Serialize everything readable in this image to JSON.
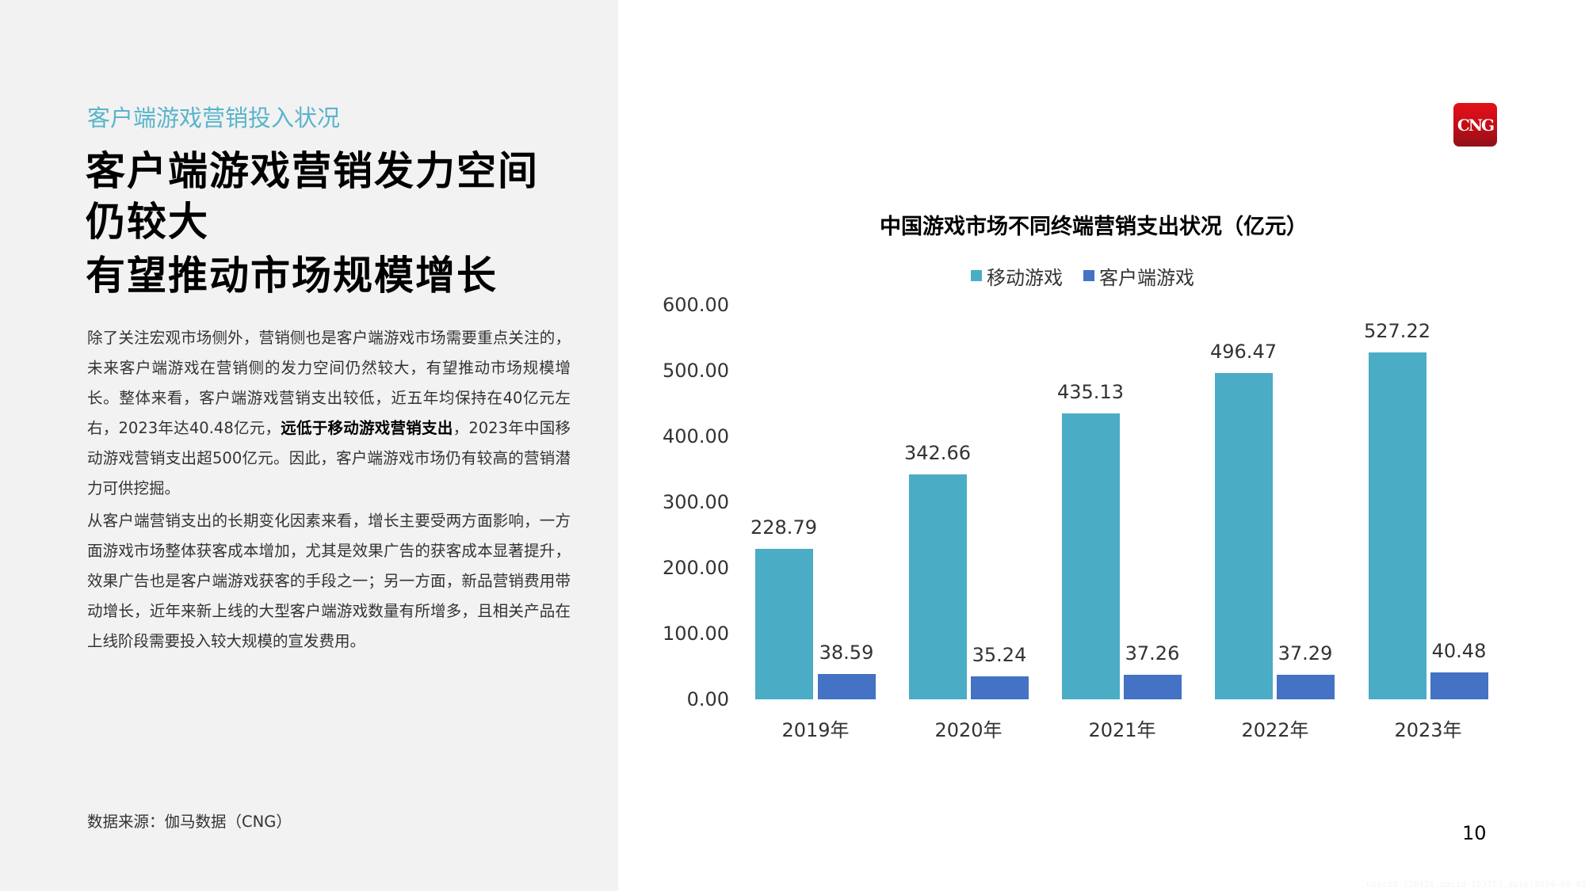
{
  "left": {
    "section_label": "客户端游戏营销投入状况",
    "headline_lines": [
      "客户端游戏营销发力空间",
      "仍较大",
      "有望推动市场规模增长"
    ],
    "paragraph1": {
      "before_bold": "除了关注宏观市场侧外，营销侧也是客户端游戏市场需要重点关注的，未来客户端游戏在营销侧的发力空间仍然较大，有望推动市场规模增长。整体来看，客户端游戏营销支出较低，近五年均保持在40亿元左右，2023年达40.48亿元，",
      "bold": "远低于移动游戏营销支出",
      "after_bold": "，2023年中国移动游戏营销支出超500亿元。因此，客户端游戏市场仍有较高的营销潜力可供挖掘。"
    },
    "paragraph2": "从客户端营销支出的长期变化因素来看，增长主要受两方面影响，一方面游戏市场整体获客成本增加，尤其是效果广告的获客成本显著提升，效果广告也是客户端游戏获客的手段之一；另一方面，新品营销费用带动增长，近年来新上线的大型客户端游戏数量有所增多，且相关产品在上线阶段需要投入较大规模的宣发费用。",
    "source": "数据来源：伽马数据（CNG）"
  },
  "logo": {
    "text": "CNG",
    "color": "#d9121b"
  },
  "page_number": "10",
  "watermark": "userid:520426,docid:163757,date:2024-06-01,sgpjbg.com",
  "colors": {
    "mobile": "#4bacc6",
    "client": "#4472c4",
    "accent": "#5ab4cc",
    "left_bg": "#f2f2f2"
  },
  "chart_data": {
    "type": "bar",
    "title": "中国游戏市场不同终端营销支出状况（亿元）",
    "categories": [
      "2019年",
      "2020年",
      "2021年",
      "2022年",
      "2023年"
    ],
    "series": [
      {
        "name": "移动游戏",
        "values": [
          228.79,
          342.66,
          435.13,
          496.47,
          527.22
        ],
        "labels": [
          "228.79",
          "342.66",
          "435.13",
          "496.47",
          "527.22"
        ]
      },
      {
        "name": "客户端游戏",
        "values": [
          38.59,
          35.24,
          37.26,
          37.29,
          40.48
        ],
        "labels": [
          "38.59",
          "35.24",
          "37.26",
          "37.29",
          "40.48"
        ]
      }
    ],
    "y_ticks": [
      "600.00",
      "500.00",
      "400.00",
      "300.00",
      "200.00",
      "100.00",
      "0.00"
    ],
    "ylim": [
      0,
      600
    ],
    "xlabel": "",
    "ylabel": "",
    "grid": false,
    "legend_position": "top"
  }
}
